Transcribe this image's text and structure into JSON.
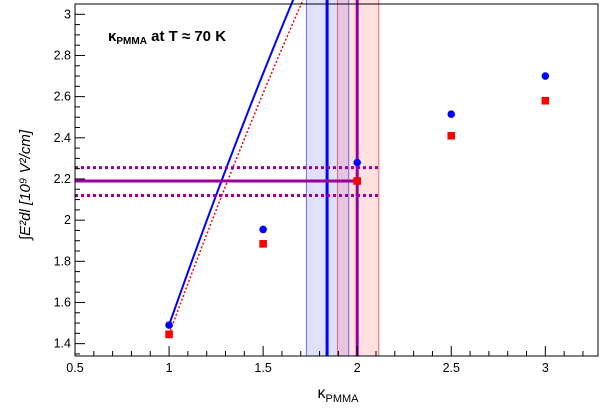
{
  "chart_data": {
    "type": "scatter",
    "annotation": {
      "kappa": "κ",
      "sub": "PMMA",
      "rest": " at T ≈ 70 K"
    },
    "xlabel": {
      "main": "κ",
      "sub": "PMMA"
    },
    "ylabel": "∫E²dl  [10⁹ V²/cm]",
    "xlim": [
      0.5,
      3.28
    ],
    "ylim": [
      1.34,
      3.05
    ],
    "xticks": [
      0.5,
      1,
      1.5,
      2,
      2.5,
      3
    ],
    "xtick_labels": [
      "0.5",
      "1",
      "1.5",
      "2",
      "2.5",
      "3"
    ],
    "yticks": [
      1.4,
      1.6,
      1.8,
      2,
      2.2,
      2.4,
      2.6,
      2.8,
      3
    ],
    "ytick_labels": [
      "1.4",
      "1.6",
      "1.8",
      "2",
      "2.2",
      "2.4",
      "2.6",
      "2.8",
      "3"
    ],
    "grid": false,
    "series": [
      {
        "color": "#0000ff",
        "marker": "circle",
        "line_style": "solid",
        "x": [
          1,
          1.5,
          2,
          2.5,
          3
        ],
        "y": [
          1.49,
          1.955,
          2.28,
          2.515,
          2.7
        ],
        "fit_a": -1.42,
        "fit_b": 3.22,
        "fit_c": -0.31
      },
      {
        "color": "#ff0000",
        "marker": "square",
        "line_style": "dotted",
        "x": [
          1,
          1.5,
          2,
          2.5,
          3
        ],
        "y": [
          1.445,
          1.885,
          2.19,
          2.41,
          2.58
        ],
        "fit_a": -1.331,
        "fit_b": 3.065,
        "fit_c": -0.289
      }
    ],
    "reference_band": {
      "color": "#990099",
      "center": 2.19,
      "lower": 2.12,
      "upper": 2.255,
      "x_end": 2.115
    },
    "blue_band": {
      "x_low": 1.73,
      "x_mid": 1.84,
      "x_high": 1.955
    },
    "red_band": {
      "x_low": 1.895,
      "x_mid": 2.0,
      "x_high": 2.115
    }
  }
}
